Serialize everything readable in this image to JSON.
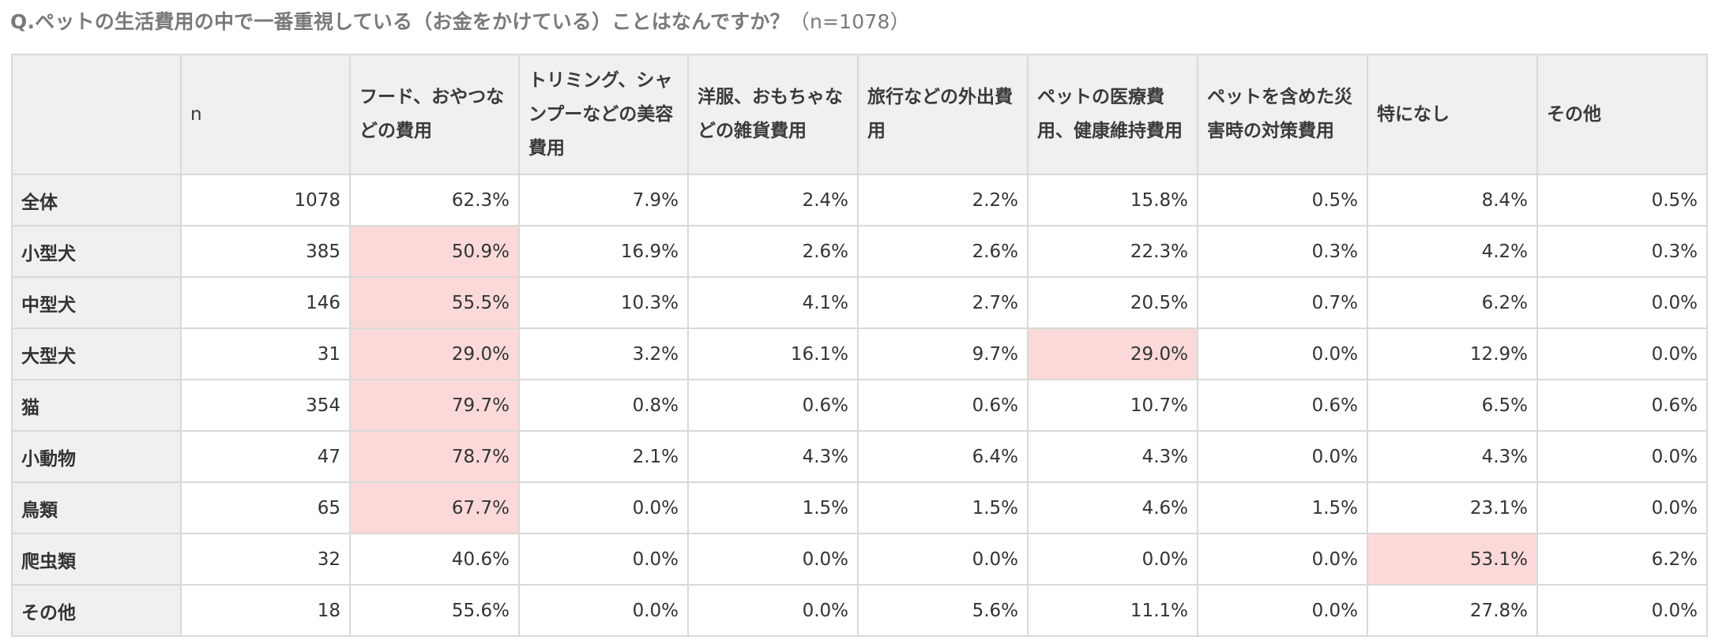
{
  "question": {
    "text": "Q.ペットの生活費用の中で一番重視している（お金をかけている）ことはなんですか？",
    "n_text": "（n=1078）"
  },
  "table": {
    "headers": [
      "",
      "n",
      "フード、おやつなどの費用",
      "トリミング、シャンプーなどの美容費用",
      "洋服、おもちゃなどの雑貨費用",
      "旅行などの外出費用",
      "ペットの医療費用、健康維持費用",
      "ペットを含めた災害時の対策費用",
      "特になし",
      "その他"
    ],
    "rows": [
      {
        "label": "全体",
        "cells": [
          "1078",
          "62.3%",
          "7.9%",
          "2.4%",
          "2.2%",
          "15.8%",
          "0.5%",
          "8.4%",
          "0.5%"
        ]
      },
      {
        "label": "小型犬",
        "cells": [
          "385",
          "50.9%",
          "16.9%",
          "2.6%",
          "2.6%",
          "22.3%",
          "0.3%",
          "4.2%",
          "0.3%"
        ]
      },
      {
        "label": "中型犬",
        "cells": [
          "146",
          "55.5%",
          "10.3%",
          "4.1%",
          "2.7%",
          "20.5%",
          "0.7%",
          "6.2%",
          "0.0%"
        ]
      },
      {
        "label": "大型犬",
        "cells": [
          "31",
          "29.0%",
          "3.2%",
          "16.1%",
          "9.7%",
          "29.0%",
          "0.0%",
          "12.9%",
          "0.0%"
        ]
      },
      {
        "label": "猫",
        "cells": [
          "354",
          "79.7%",
          "0.8%",
          "0.6%",
          "0.6%",
          "10.7%",
          "0.6%",
          "6.5%",
          "0.6%"
        ]
      },
      {
        "label": "小動物",
        "cells": [
          "47",
          "78.7%",
          "2.1%",
          "4.3%",
          "6.4%",
          "4.3%",
          "0.0%",
          "4.3%",
          "0.0%"
        ]
      },
      {
        "label": "鳥類",
        "cells": [
          "65",
          "67.7%",
          "0.0%",
          "1.5%",
          "1.5%",
          "4.6%",
          "1.5%",
          "23.1%",
          "0.0%"
        ]
      },
      {
        "label": "爬虫類",
        "cells": [
          "32",
          "40.6%",
          "0.0%",
          "0.0%",
          "0.0%",
          "0.0%",
          "0.0%",
          "53.1%",
          "6.2%"
        ]
      },
      {
        "label": "その他",
        "cells": [
          "18",
          "55.6%",
          "0.0%",
          "0.0%",
          "5.6%",
          "11.1%",
          "0.0%",
          "27.8%",
          "0.0%"
        ]
      }
    ]
  },
  "colors": {
    "header_bg": "#f0f0f0",
    "highlight": "#fcd9d9",
    "border": "#d9d9d9",
    "question_text": "#7a7a7a"
  }
}
